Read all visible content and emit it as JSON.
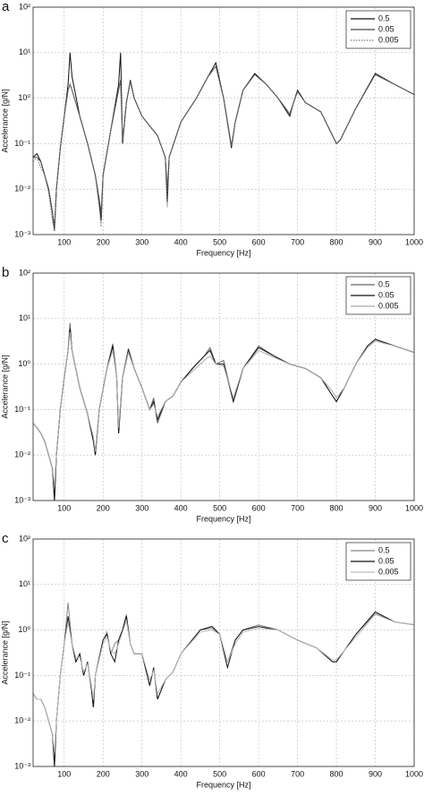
{
  "chart_data": [
    {
      "type": "line",
      "panel_label": "a",
      "x_label": "Frequency [Hz]",
      "y_label": "Accelerance [g/N]",
      "log_y": true,
      "grid": true,
      "legend": "upper right",
      "xlim": [
        20,
        1000
      ],
      "ylim": [
        0.001,
        100
      ],
      "xticks": [
        100,
        200,
        300,
        400,
        500,
        600,
        700,
        800,
        900,
        1000
      ],
      "yticks": [
        {
          "value": 0.001,
          "label": "10⁻³"
        },
        {
          "value": 0.01,
          "label": "10⁻²"
        },
        {
          "value": 0.1,
          "label": "10⁻¹"
        },
        {
          "value": 1,
          "label": "10⁰"
        },
        {
          "value": 10,
          "label": "10¹"
        },
        {
          "value": 100,
          "label": "10²"
        }
      ],
      "x": [
        20,
        30,
        40,
        50,
        60,
        70,
        75,
        80,
        90,
        100,
        110,
        115,
        120,
        140,
        160,
        180,
        190,
        195,
        200,
        220,
        240,
        245,
        250,
        260,
        270,
        280,
        300,
        340,
        360,
        365,
        370,
        400,
        440,
        470,
        490,
        510,
        530,
        540,
        560,
        590,
        620,
        650,
        680,
        690,
        700,
        720,
        760,
        800,
        810,
        850,
        900,
        950,
        1000
      ],
      "series": [
        {
          "name": "0.5",
          "color": "#111111",
          "style": "solid",
          "values": [
            0.05,
            0.06,
            0.04,
            0.02,
            0.01,
            0.003,
            0.0012,
            0.01,
            0.08,
            0.4,
            2,
            10,
            3,
            0.4,
            0.1,
            0.02,
            0.005,
            0.002,
            0.02,
            0.2,
            2,
            10,
            0.1,
            0.8,
            2.5,
            1,
            0.4,
            0.15,
            0.05,
            0.005,
            0.05,
            0.3,
            1,
            3,
            6,
            1,
            0.08,
            0.3,
            1.5,
            3.5,
            2,
            1,
            0.4,
            0.8,
            1.5,
            0.8,
            0.5,
            0.1,
            0.12,
            0.6,
            3.5,
            2,
            1.2
          ]
        },
        {
          "name": "0.05",
          "color": "#444444",
          "style": "solid",
          "values": [
            0.05,
            0.05,
            0.04,
            0.02,
            0.01,
            0.003,
            0.0015,
            0.01,
            0.08,
            0.4,
            1.5,
            2,
            1.5,
            0.4,
            0.1,
            0.02,
            0.006,
            0.003,
            0.02,
            0.2,
            1.5,
            2.5,
            0.12,
            0.8,
            2.3,
            1,
            0.4,
            0.15,
            0.05,
            0.01,
            0.05,
            0.3,
            1,
            3,
            5,
            1,
            0.09,
            0.3,
            1.5,
            3.3,
            2,
            1,
            0.45,
            0.8,
            1.4,
            0.8,
            0.5,
            0.1,
            0.12,
            0.6,
            3.3,
            2,
            1.2
          ]
        },
        {
          "name": "0.005",
          "color": "#777777",
          "style": "dotted",
          "values": [
            0.04,
            0.05,
            0.03,
            0.02,
            0.008,
            0.002,
            0.0012,
            0.01,
            0.08,
            0.4,
            1.5,
            2,
            1.5,
            0.4,
            0.1,
            0.02,
            0.004,
            0.0015,
            0.02,
            0.2,
            1.5,
            2.5,
            0.12,
            0.8,
            2.3,
            1,
            0.4,
            0.15,
            0.05,
            0.004,
            0.05,
            0.3,
            1,
            3,
            5,
            1,
            0.09,
            0.3,
            1.5,
            3.3,
            2,
            1,
            0.45,
            0.8,
            1.4,
            0.8,
            0.5,
            0.1,
            0.12,
            0.6,
            3.3,
            2,
            1.2
          ]
        }
      ]
    },
    {
      "type": "line",
      "panel_label": "b",
      "x_label": "Frequency [Hz]",
      "y_label": "Accelerance [g/N]",
      "log_y": true,
      "grid": true,
      "legend": "upper right",
      "xlim": [
        20,
        1000
      ],
      "ylim": [
        0.001,
        100
      ],
      "xticks": [
        100,
        200,
        300,
        400,
        500,
        600,
        700,
        800,
        900,
        1000
      ],
      "yticks": [
        {
          "value": 0.001,
          "label": "10⁻³"
        },
        {
          "value": 0.01,
          "label": "10⁻²"
        },
        {
          "value": 0.1,
          "label": "10⁻¹"
        },
        {
          "value": 1,
          "label": "10⁰"
        },
        {
          "value": 10,
          "label": "10¹"
        },
        {
          "value": 100,
          "label": "10²"
        }
      ],
      "x": [
        20,
        30,
        40,
        50,
        60,
        70,
        75,
        80,
        90,
        100,
        110,
        115,
        120,
        140,
        160,
        175,
        180,
        190,
        210,
        225,
        235,
        240,
        250,
        265,
        280,
        300,
        320,
        330,
        340,
        360,
        380,
        400,
        430,
        460,
        475,
        490,
        510,
        535,
        560,
        600,
        640,
        680,
        720,
        760,
        790,
        800,
        820,
        850,
        880,
        900,
        950,
        1000
      ],
      "series": [
        {
          "name": "0.5",
          "color": "#666666",
          "style": "solid",
          "values": [
            0.05,
            0.04,
            0.03,
            0.02,
            0.01,
            0.005,
            0.001,
            0.01,
            0.1,
            0.5,
            2,
            8,
            2,
            0.3,
            0.08,
            0.02,
            0.01,
            0.1,
            0.8,
            2.8,
            0.5,
            0.03,
            0.5,
            2.2,
            0.8,
            0.3,
            0.1,
            0.18,
            0.05,
            0.15,
            0.2,
            0.4,
            0.8,
            1.5,
            2.3,
            1,
            1.2,
            0.15,
            0.8,
            2.5,
            1.5,
            1,
            0.8,
            0.5,
            0.2,
            0.15,
            0.3,
            1,
            2.5,
            3.5,
            2.5,
            1.8
          ]
        },
        {
          "name": "0.05",
          "color": "#111111",
          "style": "solid",
          "values": [
            0.05,
            0.04,
            0.03,
            0.02,
            0.01,
            0.005,
            0.001,
            0.01,
            0.1,
            0.5,
            2,
            6,
            2,
            0.3,
            0.08,
            0.02,
            0.01,
            0.1,
            0.8,
            2.5,
            0.5,
            0.03,
            0.5,
            2,
            0.8,
            0.3,
            0.1,
            0.15,
            0.06,
            0.15,
            0.2,
            0.4,
            0.8,
            1.5,
            2,
            1,
            1,
            0.15,
            0.8,
            2.3,
            1.5,
            1,
            0.8,
            0.5,
            0.2,
            0.15,
            0.3,
            1,
            2.5,
            3.5,
            2.5,
            1.8
          ]
        },
        {
          "name": "0.005",
          "color": "#aaaaaa",
          "style": "solid",
          "values": [
            0.05,
            0.04,
            0.03,
            0.02,
            0.01,
            0.005,
            0.002,
            0.01,
            0.1,
            0.5,
            2,
            5,
            2,
            0.3,
            0.08,
            0.025,
            0.012,
            0.1,
            0.8,
            2,
            0.5,
            0.04,
            0.5,
            1.8,
            0.8,
            0.3,
            0.1,
            0.13,
            0.07,
            0.15,
            0.2,
            0.4,
            0.7,
            1.2,
            1.5,
            1,
            0.9,
            0.18,
            0.8,
            2,
            1.4,
            1,
            0.8,
            0.5,
            0.25,
            0.18,
            0.3,
            1,
            2.3,
            3.2,
            2.5,
            1.8
          ]
        }
      ]
    },
    {
      "type": "line",
      "panel_label": "c",
      "x_label": "Frequency [Hz]",
      "y_label": "Accelerance [g/N]",
      "log_y": true,
      "grid": true,
      "legend": "upper right",
      "xlim": [
        20,
        1000
      ],
      "ylim": [
        0.001,
        100
      ],
      "xticks": [
        100,
        200,
        300,
        400,
        500,
        600,
        700,
        800,
        900,
        1000
      ],
      "yticks": [
        {
          "value": 0.001,
          "label": "10⁻³"
        },
        {
          "value": 0.01,
          "label": "10⁻²"
        },
        {
          "value": 0.1,
          "label": "10⁻¹"
        },
        {
          "value": 1,
          "label": "10⁰"
        },
        {
          "value": 10,
          "label": "10¹"
        },
        {
          "value": 100,
          "label": "10²"
        }
      ],
      "x": [
        20,
        30,
        40,
        50,
        60,
        70,
        75,
        80,
        90,
        100,
        110,
        120,
        130,
        140,
        150,
        160,
        170,
        175,
        180,
        200,
        210,
        220,
        230,
        240,
        250,
        260,
        270,
        280,
        300,
        320,
        330,
        340,
        360,
        380,
        400,
        450,
        480,
        500,
        520,
        540,
        560,
        600,
        650,
        700,
        750,
        790,
        800,
        850,
        900,
        950,
        1000
      ],
      "series": [
        {
          "name": "0.5",
          "color": "#888888",
          "style": "solid",
          "values": [
            0.04,
            0.03,
            0.03,
            0.02,
            0.01,
            0.005,
            0.001,
            0.01,
            0.1,
            0.5,
            4,
            0.5,
            0.2,
            0.3,
            0.1,
            0.2,
            0.05,
            0.02,
            0.1,
            0.6,
            0.9,
            0.3,
            0.5,
            0.6,
            1,
            2.2,
            0.5,
            0.3,
            0.3,
            0.06,
            0.15,
            0.03,
            0.08,
            0.12,
            0.3,
            1,
            1.1,
            0.8,
            0.2,
            0.6,
            1,
            1.3,
            1,
            0.6,
            0.4,
            0.2,
            0.2,
            0.8,
            2.3,
            1.5,
            1.3
          ]
        },
        {
          "name": "0.05",
          "color": "#111111",
          "style": "solid",
          "values": [
            0.04,
            0.03,
            0.03,
            0.02,
            0.01,
            0.005,
            0.001,
            0.01,
            0.1,
            0.5,
            2,
            0.5,
            0.2,
            0.3,
            0.1,
            0.2,
            0.05,
            0.02,
            0.1,
            0.6,
            0.8,
            0.3,
            0.2,
            0.6,
            1,
            2,
            0.5,
            0.3,
            0.3,
            0.06,
            0.15,
            0.03,
            0.08,
            0.12,
            0.3,
            1,
            1.2,
            0.8,
            0.15,
            0.6,
            1,
            1.2,
            1,
            0.6,
            0.4,
            0.2,
            0.2,
            0.8,
            2.5,
            1.5,
            1.3
          ]
        },
        {
          "name": "0.005",
          "color": "#bbbbbb",
          "style": "solid",
          "values": [
            0.04,
            0.03,
            0.03,
            0.02,
            0.01,
            0.005,
            0.002,
            0.01,
            0.1,
            0.5,
            1.5,
            0.5,
            0.25,
            0.25,
            0.12,
            0.18,
            0.06,
            0.03,
            0.1,
            0.5,
            0.7,
            0.35,
            0.3,
            0.5,
            0.9,
            1.6,
            0.5,
            0.3,
            0.3,
            0.08,
            0.13,
            0.04,
            0.08,
            0.12,
            0.3,
            0.9,
            1,
            0.8,
            0.2,
            0.5,
            0.9,
            1.1,
            1,
            0.6,
            0.4,
            0.22,
            0.22,
            0.7,
            2.2,
            1.5,
            1.3
          ]
        }
      ]
    }
  ]
}
